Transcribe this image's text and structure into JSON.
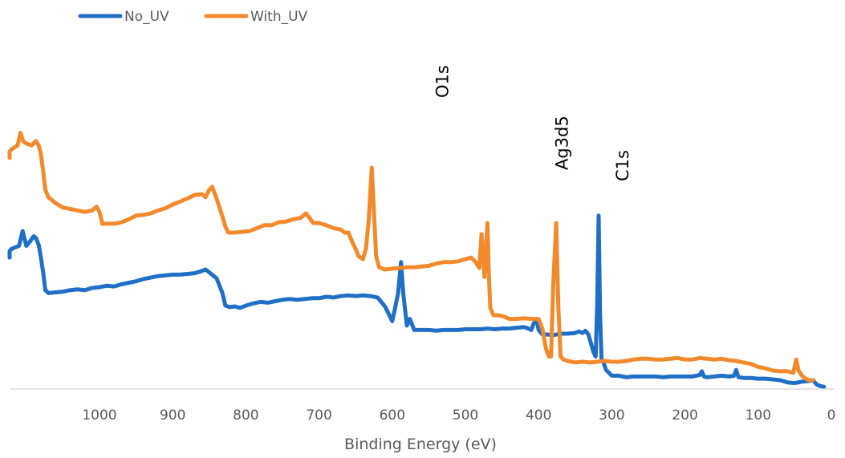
{
  "chart_data": {
    "type": "line",
    "title": "",
    "xlabel": "Binding Energy (eV)",
    "ylabel": "",
    "x_reversed": true,
    "xlim": [
      1200,
      0
    ],
    "ylim": [
      0,
      520
    ],
    "x_ticks": [
      1000,
      900,
      800,
      700,
      600,
      500,
      400,
      300,
      200,
      100,
      0
    ],
    "grid": false,
    "legend_position": "top-left",
    "annotations": [
      {
        "text": "O1s",
        "x": 531
      },
      {
        "text": "Ag3d5",
        "x": 368
      },
      {
        "text": "C1s",
        "x": 285
      }
    ],
    "series": [
      {
        "name": "No_UV",
        "color": "#1f6fc6",
        "points": [
          [
            1200,
            178
          ],
          [
            1190,
            180
          ],
          [
            1180,
            183
          ],
          [
            1170,
            186
          ],
          [
            1160,
            184
          ],
          [
            1150,
            185
          ],
          [
            1140,
            186
          ],
          [
            1130,
            187
          ],
          [
            1120,
            190
          ],
          [
            1110,
            194
          ],
          [
            1105,
            214
          ],
          [
            1100,
            194
          ],
          [
            1095,
            200
          ],
          [
            1090,
            207
          ],
          [
            1087,
            205
          ],
          [
            1083,
            195
          ],
          [
            1080,
            178
          ],
          [
            1077,
            158
          ],
          [
            1074,
            134
          ],
          [
            1070,
            130
          ],
          [
            1060,
            131
          ],
          [
            1050,
            132
          ],
          [
            1040,
            134
          ],
          [
            1030,
            135
          ],
          [
            1020,
            134
          ],
          [
            1010,
            137
          ],
          [
            1000,
            138
          ],
          [
            990,
            140
          ],
          [
            980,
            139
          ],
          [
            970,
            142
          ],
          [
            960,
            144
          ],
          [
            950,
            146
          ],
          [
            940,
            149
          ],
          [
            930,
            151
          ],
          [
            920,
            153
          ],
          [
            910,
            154
          ],
          [
            900,
            155
          ],
          [
            890,
            155
          ],
          [
            880,
            156
          ],
          [
            870,
            157
          ],
          [
            860,
            160
          ],
          [
            855,
            162
          ],
          [
            850,
            158
          ],
          [
            840,
            150
          ],
          [
            832,
            130
          ],
          [
            828,
            113
          ],
          [
            822,
            111
          ],
          [
            815,
            112
          ],
          [
            808,
            110
          ],
          [
            800,
            113
          ],
          [
            790,
            116
          ],
          [
            780,
            118
          ],
          [
            770,
            117
          ],
          [
            760,
            119
          ],
          [
            750,
            121
          ],
          [
            740,
            122
          ],
          [
            730,
            121
          ],
          [
            720,
            122
          ],
          [
            710,
            123
          ],
          [
            700,
            123
          ],
          [
            690,
            125
          ],
          [
            680,
            124
          ],
          [
            670,
            126
          ],
          [
            660,
            127
          ],
          [
            650,
            126
          ],
          [
            640,
            127
          ],
          [
            630,
            126
          ],
          [
            620,
            124
          ],
          [
            610,
            112
          ],
          [
            604,
            100
          ],
          [
            600,
            92
          ],
          [
            596,
            110
          ],
          [
            592,
            130
          ],
          [
            588,
            172
          ],
          [
            585,
            130
          ],
          [
            580,
            86
          ],
          [
            576,
            95
          ],
          [
            570,
            80
          ],
          [
            560,
            80
          ],
          [
            550,
            80
          ],
          [
            540,
            79
          ],
          [
            530,
            80
          ],
          [
            520,
            80
          ],
          [
            510,
            80
          ],
          [
            500,
            81
          ],
          [
            490,
            81
          ],
          [
            480,
            81
          ],
          [
            470,
            82
          ],
          [
            460,
            81
          ],
          [
            450,
            82
          ],
          [
            440,
            82
          ],
          [
            430,
            83
          ],
          [
            420,
            84
          ],
          [
            414,
            82
          ],
          [
            410,
            80
          ],
          [
            407,
            88
          ],
          [
            403,
            95
          ],
          [
            400,
            80
          ],
          [
            395,
            74
          ],
          [
            390,
            74
          ],
          [
            380,
            73
          ],
          [
            370,
            75
          ],
          [
            360,
            75
          ],
          [
            350,
            76
          ],
          [
            345,
            78
          ],
          [
            340,
            76
          ],
          [
            336,
            79
          ],
          [
            332,
            74
          ],
          [
            328,
            60
          ],
          [
            325,
            50
          ],
          [
            322,
            44
          ],
          [
            320,
            115
          ],
          [
            318,
            235
          ],
          [
            316,
            100
          ],
          [
            314,
            40
          ],
          [
            311,
            35
          ],
          [
            308,
            26
          ],
          [
            300,
            18
          ],
          [
            290,
            18
          ],
          [
            280,
            16
          ],
          [
            270,
            17
          ],
          [
            260,
            17
          ],
          [
            250,
            17
          ],
          [
            240,
            17
          ],
          [
            230,
            16
          ],
          [
            220,
            17
          ],
          [
            210,
            17
          ],
          [
            200,
            17
          ],
          [
            190,
            17
          ],
          [
            180,
            19
          ],
          [
            177,
            24
          ],
          [
            174,
            17
          ],
          [
            170,
            16
          ],
          [
            160,
            17
          ],
          [
            150,
            18
          ],
          [
            140,
            17
          ],
          [
            133,
            18
          ],
          [
            130,
            26
          ],
          [
            127,
            16
          ],
          [
            120,
            15
          ],
          [
            110,
            15
          ],
          [
            100,
            14
          ],
          [
            90,
            14
          ],
          [
            80,
            13
          ],
          [
            70,
            12
          ],
          [
            60,
            9
          ],
          [
            50,
            8
          ],
          [
            40,
            10
          ],
          [
            30,
            11
          ],
          [
            25,
            12
          ],
          [
            20,
            6
          ],
          [
            15,
            4
          ],
          [
            10,
            3
          ]
        ]
      },
      {
        "name": "With_UV",
        "color": "#f28a2c",
        "points": [
          [
            1200,
            315
          ],
          [
            1190,
            318
          ],
          [
            1180,
            314
          ],
          [
            1170,
            320
          ],
          [
            1160,
            313
          ],
          [
            1150,
            318
          ],
          [
            1140,
            316
          ],
          [
            1130,
            322
          ],
          [
            1120,
            325
          ],
          [
            1112,
            330
          ],
          [
            1108,
            347
          ],
          [
            1104,
            335
          ],
          [
            1098,
            332
          ],
          [
            1093,
            330
          ],
          [
            1087,
            336
          ],
          [
            1083,
            330
          ],
          [
            1080,
            318
          ],
          [
            1077,
            295
          ],
          [
            1074,
            270
          ],
          [
            1070,
            260
          ],
          [
            1060,
            252
          ],
          [
            1050,
            246
          ],
          [
            1040,
            244
          ],
          [
            1030,
            242
          ],
          [
            1020,
            240
          ],
          [
            1010,
            242
          ],
          [
            1004,
            247
          ],
          [
            1000,
            240
          ],
          [
            996,
            224
          ],
          [
            990,
            224
          ],
          [
            980,
            224
          ],
          [
            970,
            226
          ],
          [
            960,
            230
          ],
          [
            950,
            235
          ],
          [
            940,
            236
          ],
          [
            930,
            238
          ],
          [
            920,
            242
          ],
          [
            910,
            245
          ],
          [
            900,
            250
          ],
          [
            890,
            254
          ],
          [
            880,
            258
          ],
          [
            870,
            263
          ],
          [
            860,
            264
          ],
          [
            855,
            260
          ],
          [
            850,
            270
          ],
          [
            846,
            274
          ],
          [
            840,
            258
          ],
          [
            834,
            240
          ],
          [
            828,
            220
          ],
          [
            824,
            212
          ],
          [
            815,
            212
          ],
          [
            805,
            213
          ],
          [
            795,
            214
          ],
          [
            785,
            218
          ],
          [
            775,
            222
          ],
          [
            765,
            222
          ],
          [
            755,
            226
          ],
          [
            745,
            227
          ],
          [
            735,
            230
          ],
          [
            725,
            232
          ],
          [
            718,
            238
          ],
          [
            713,
            232
          ],
          [
            708,
            225
          ],
          [
            700,
            225
          ],
          [
            690,
            222
          ],
          [
            680,
            218
          ],
          [
            670,
            216
          ],
          [
            665,
            212
          ],
          [
            660,
            212
          ],
          [
            655,
            200
          ],
          [
            650,
            190
          ],
          [
            646,
            180
          ],
          [
            640,
            176
          ],
          [
            636,
            190
          ],
          [
            632,
            230
          ],
          [
            628,
            300
          ],
          [
            625,
            240
          ],
          [
            622,
            180
          ],
          [
            618,
            165
          ],
          [
            610,
            162
          ],
          [
            600,
            163
          ],
          [
            590,
            164
          ],
          [
            580,
            165
          ],
          [
            570,
            165
          ],
          [
            560,
            166
          ],
          [
            550,
            167
          ],
          [
            540,
            170
          ],
          [
            530,
            172
          ],
          [
            520,
            172
          ],
          [
            510,
            173
          ],
          [
            500,
            176
          ],
          [
            492,
            178
          ],
          [
            486,
            172
          ],
          [
            481,
            164
          ],
          [
            478,
            210
          ],
          [
            474,
            152
          ],
          [
            470,
            225
          ],
          [
            468,
            155
          ],
          [
            466,
            110
          ],
          [
            462,
            100
          ],
          [
            455,
            100
          ],
          [
            447,
            98
          ],
          [
            440,
            95
          ],
          [
            430,
            95
          ],
          [
            420,
            96
          ],
          [
            410,
            95
          ],
          [
            400,
            95
          ],
          [
            395,
            82
          ],
          [
            390,
            55
          ],
          [
            386,
            44
          ],
          [
            383,
            44
          ],
          [
            380,
            140
          ],
          [
            376,
            225
          ],
          [
            373,
            110
          ],
          [
            370,
            44
          ],
          [
            366,
            40
          ],
          [
            360,
            38
          ],
          [
            350,
            36
          ],
          [
            340,
            37
          ],
          [
            330,
            36
          ],
          [
            320,
            37
          ],
          [
            310,
            38
          ],
          [
            300,
            37
          ],
          [
            290,
            37
          ],
          [
            280,
            38
          ],
          [
            270,
            40
          ],
          [
            260,
            41
          ],
          [
            250,
            41
          ],
          [
            240,
            40
          ],
          [
            230,
            40
          ],
          [
            220,
            41
          ],
          [
            210,
            42
          ],
          [
            200,
            40
          ],
          [
            190,
            40
          ],
          [
            180,
            42
          ],
          [
            170,
            41
          ],
          [
            160,
            40
          ],
          [
            150,
            41
          ],
          [
            140,
            39
          ],
          [
            130,
            38
          ],
          [
            120,
            36
          ],
          [
            110,
            34
          ],
          [
            100,
            30
          ],
          [
            90,
            28
          ],
          [
            80,
            25
          ],
          [
            70,
            24
          ],
          [
            60,
            24
          ],
          [
            52,
            22
          ],
          [
            48,
            40
          ],
          [
            45,
            25
          ],
          [
            40,
            18
          ],
          [
            35,
            14
          ],
          [
            30,
            12
          ],
          [
            25,
            12
          ]
        ]
      }
    ]
  }
}
